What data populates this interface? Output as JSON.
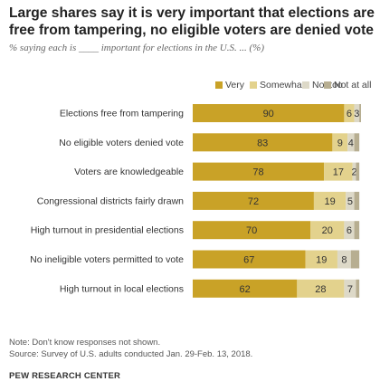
{
  "title": "Large shares say it is very important that elections are free from tampering, no eligible voters are denied vote",
  "subtitle": "% saying each is ____ important for elections in the U.S. ... (%)",
  "legend": [
    {
      "label": "Very",
      "color": "#C9A227"
    },
    {
      "label": "Somewhat",
      "color": "#E3D28D"
    },
    {
      "label": "Not too",
      "color": "#DDD9C8"
    },
    {
      "label": "Not at all",
      "color": "#B7AE91"
    }
  ],
  "chart_data": {
    "type": "bar",
    "orientation": "horizontal",
    "stacked": true,
    "xlim": [
      0,
      100
    ],
    "grid": false,
    "legend_position": "top-right",
    "categories": [
      "Elections free from tampering",
      "No eligible voters denied vote",
      "Voters are knowledgeable",
      "Congressional districts fairly drawn",
      "High turnout in presidential elections",
      "No ineligible voters permitted to vote",
      "High turnout in local elections"
    ],
    "series": [
      {
        "name": "Very",
        "values": [
          90,
          83,
          78,
          72,
          70,
          67,
          62
        ],
        "labels": [
          "90",
          "83",
          "78",
          "72",
          "70",
          "67",
          "62"
        ]
      },
      {
        "name": "Somewhat",
        "values": [
          6,
          9,
          17,
          19,
          20,
          19,
          28
        ],
        "labels": [
          "6",
          "9",
          "17",
          "19",
          "20",
          "19",
          "28"
        ]
      },
      {
        "name": "Not too",
        "values": [
          3,
          4,
          2,
          5,
          6,
          8,
          7
        ],
        "labels": [
          "3",
          "4",
          "2",
          "5",
          "6",
          "8",
          "7"
        ]
      },
      {
        "name": "Not at all",
        "values": [
          1,
          3,
          2,
          3,
          3,
          5,
          2
        ],
        "labels": [
          "",
          "",
          "",
          "",
          "",
          "",
          ""
        ]
      }
    ]
  },
  "footer": {
    "note": "Note: Don't know responses not shown.",
    "source": "Source: Survey of U.S. adults conducted Jan. 29-Feb. 13, 2018.",
    "brand": "PEW RESEARCH CENTER"
  }
}
